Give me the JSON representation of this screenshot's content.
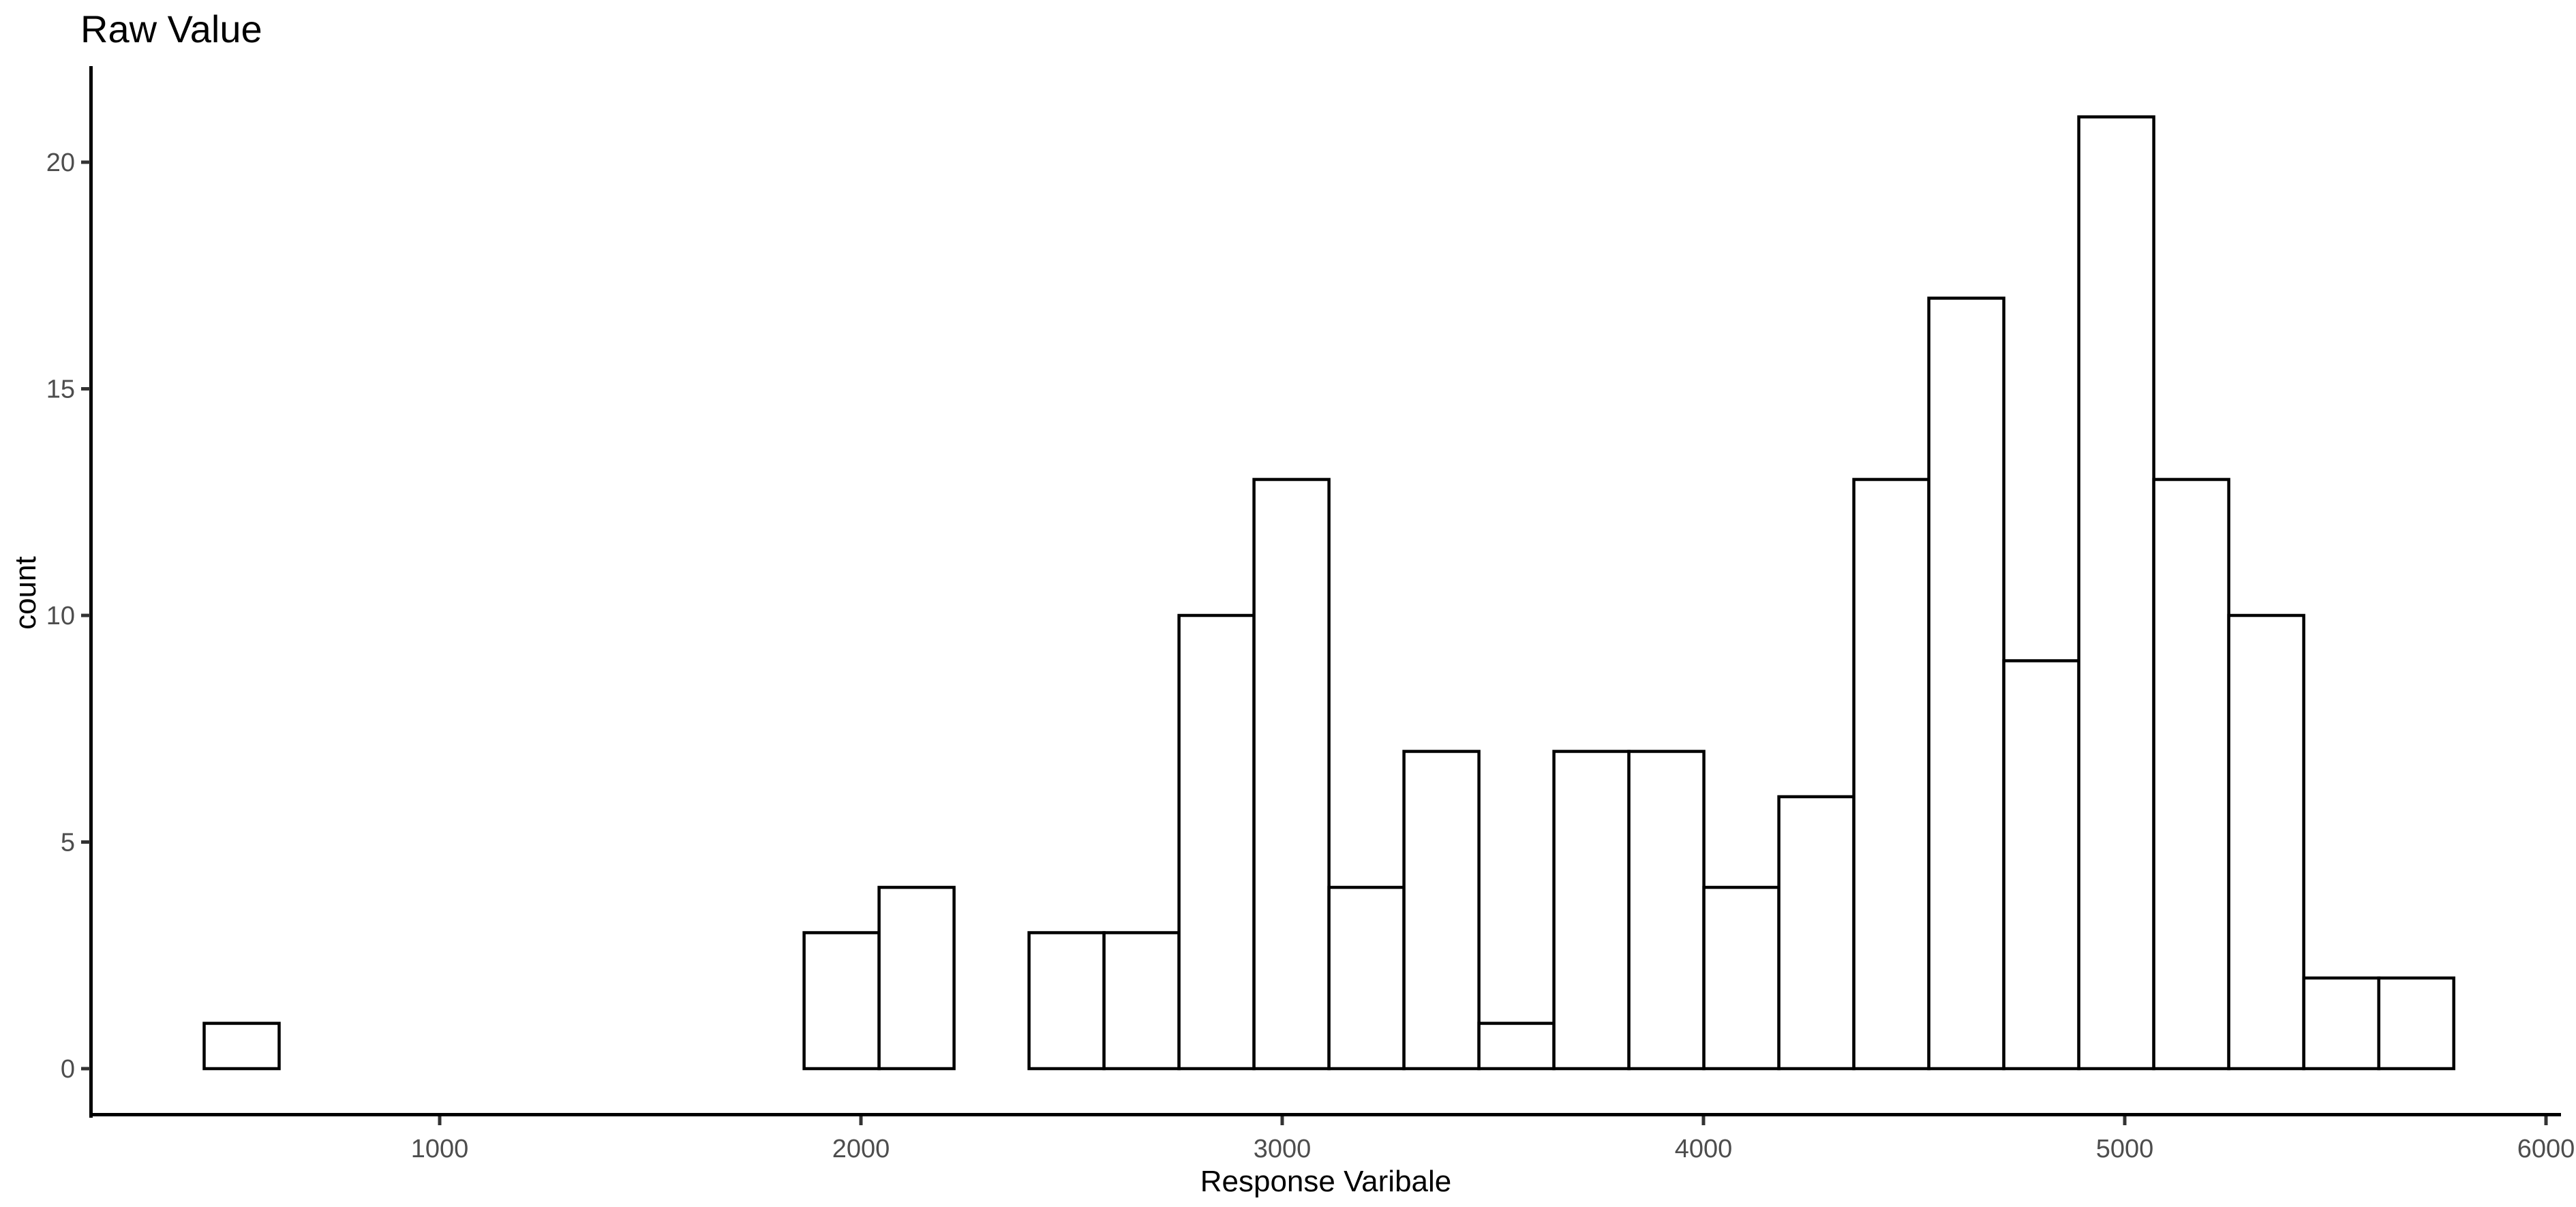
{
  "title": "Raw Value",
  "x_axis": {
    "label": "Response Varibale",
    "tick_values": [
      1000,
      2000,
      3000,
      4000,
      5000,
      6000
    ]
  },
  "y_axis": {
    "label": "count",
    "tick_values": [
      0,
      5,
      10,
      15,
      20
    ]
  },
  "colors": {
    "background": "#ffffff",
    "bar_fill": "#ffffff",
    "bar_stroke": "#000000",
    "axis_line": "#000000",
    "tick_mark": "#333333",
    "tick_label": "#4d4d4d",
    "title": "#000000"
  },
  "chart_data": {
    "type": "bar",
    "subtype": "histogram",
    "title": "Raw Value",
    "xlabel": "Response Varibale",
    "ylabel": "count",
    "xlim": [
      170,
      6060
    ],
    "ylim": [
      0,
      22
    ],
    "grid": false,
    "legend": false,
    "binwidth": 178,
    "total_n": 160,
    "bins": [
      {
        "x0": 441,
        "x1": 619,
        "count": 1
      },
      {
        "x0": 619,
        "x1": 797,
        "count": 0
      },
      {
        "x0": 797,
        "x1": 975,
        "count": 0
      },
      {
        "x0": 975,
        "x1": 1153,
        "count": 0
      },
      {
        "x0": 1153,
        "x1": 1331,
        "count": 0
      },
      {
        "x0": 1331,
        "x1": 1509,
        "count": 0
      },
      {
        "x0": 1509,
        "x1": 1687,
        "count": 0
      },
      {
        "x0": 1687,
        "x1": 1865,
        "count": 0
      },
      {
        "x0": 1865,
        "x1": 2043,
        "count": 3
      },
      {
        "x0": 2043,
        "x1": 2221,
        "count": 4
      },
      {
        "x0": 2221,
        "x1": 2399,
        "count": 0
      },
      {
        "x0": 2399,
        "x1": 2577,
        "count": 3
      },
      {
        "x0": 2577,
        "x1": 2755,
        "count": 3
      },
      {
        "x0": 2755,
        "x1": 2933,
        "count": 10
      },
      {
        "x0": 2933,
        "x1": 3111,
        "count": 13
      },
      {
        "x0": 3111,
        "x1": 3289,
        "count": 4
      },
      {
        "x0": 3289,
        "x1": 3467,
        "count": 7
      },
      {
        "x0": 3467,
        "x1": 3645,
        "count": 1
      },
      {
        "x0": 3645,
        "x1": 3823,
        "count": 7
      },
      {
        "x0": 3823,
        "x1": 4001,
        "count": 7
      },
      {
        "x0": 4001,
        "x1": 4179,
        "count": 4
      },
      {
        "x0": 4179,
        "x1": 4357,
        "count": 6
      },
      {
        "x0": 4357,
        "x1": 4535,
        "count": 13
      },
      {
        "x0": 4535,
        "x1": 4713,
        "count": 17
      },
      {
        "x0": 4713,
        "x1": 4891,
        "count": 9
      },
      {
        "x0": 4891,
        "x1": 5069,
        "count": 21
      },
      {
        "x0": 5069,
        "x1": 5247,
        "count": 13
      },
      {
        "x0": 5247,
        "x1": 5425,
        "count": 10
      },
      {
        "x0": 5425,
        "x1": 5603,
        "count": 2
      },
      {
        "x0": 5603,
        "x1": 5781,
        "count": 2
      }
    ]
  }
}
